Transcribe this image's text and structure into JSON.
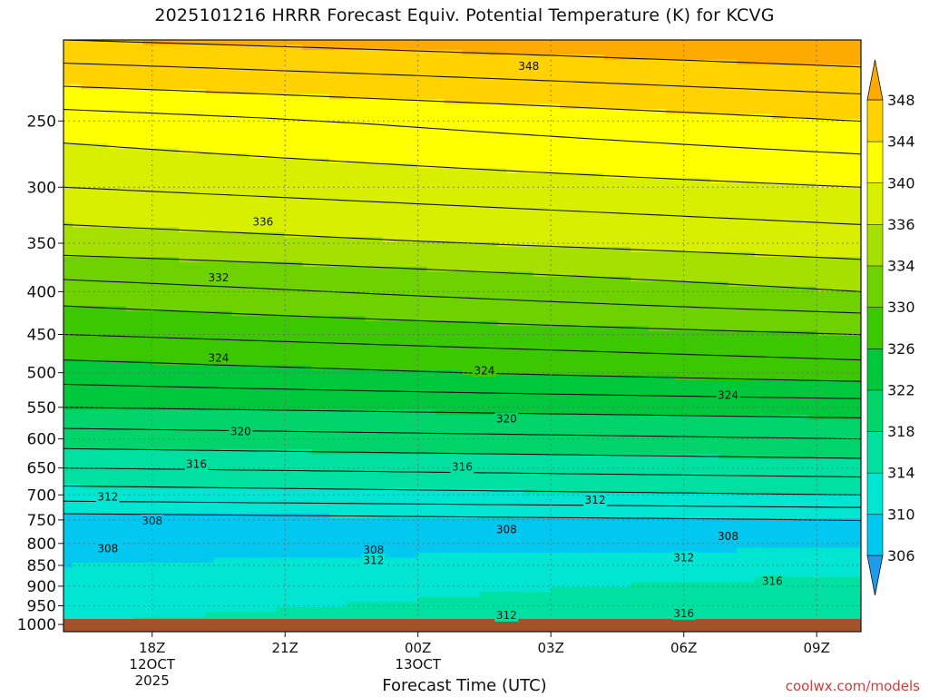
{
  "title": "2025101216 HRRR Forecast Equiv. Potential Temperature (K) for KCVG",
  "credit": "coolwx.com/models",
  "chart_data": {
    "type": "heatmap",
    "title": "2025101216 HRRR Forecast Equiv. Potential Temperature (K) for KCVG",
    "xlabel": "Forecast Time (UTC)",
    "ylabel": "",
    "x_ticks": [
      {
        "hour": 2,
        "label": "18Z",
        "sub": [
          "12OCT",
          "2025"
        ]
      },
      {
        "hour": 5,
        "label": "21Z",
        "sub": []
      },
      {
        "hour": 8,
        "label": "00Z",
        "sub": [
          "13OCT"
        ]
      },
      {
        "hour": 11,
        "label": "03Z",
        "sub": []
      },
      {
        "hour": 14,
        "label": "06Z",
        "sub": []
      },
      {
        "hour": 17,
        "label": "09Z",
        "sub": []
      }
    ],
    "y_ticks": [
      250,
      300,
      350,
      400,
      450,
      500,
      550,
      600,
      650,
      700,
      750,
      800,
      850,
      900,
      950,
      1000
    ],
    "ylim_hPa": [
      200,
      1020
    ],
    "y_scale": "log",
    "grid": "dotted",
    "colorbar": {
      "levels": [
        306,
        310,
        314,
        318,
        322,
        326,
        330,
        334,
        336,
        340,
        344,
        348
      ],
      "placement": "right",
      "colors": [
        "#1e9bea",
        "#00c8f0",
        "#00e6d2",
        "#00e0a0",
        "#00d46a",
        "#00c83c",
        "#3cc800",
        "#6ed200",
        "#a6e000",
        "#d8f000",
        "#ffff00",
        "#ffd200",
        "#ffaa00"
      ]
    },
    "profile_start": [
      {
        "p": 200,
        "theta": 348
      },
      {
        "p": 250,
        "theta": 341
      },
      {
        "p": 300,
        "theta": 338
      },
      {
        "p": 350,
        "theta": 335
      },
      {
        "p": 400,
        "theta": 331
      },
      {
        "p": 450,
        "theta": 328
      },
      {
        "p": 500,
        "theta": 325
      },
      {
        "p": 550,
        "theta": 322
      },
      {
        "p": 600,
        "theta": 319
      },
      {
        "p": 650,
        "theta": 316
      },
      {
        "p": 700,
        "theta": 313
      },
      {
        "p": 750,
        "theta": 309
      },
      {
        "p": 800,
        "theta": 308
      },
      {
        "p": 850,
        "theta": 310
      },
      {
        "p": 900,
        "theta": 312
      },
      {
        "p": 950,
        "theta": 313
      },
      {
        "p": 1000,
        "theta": 314
      }
    ],
    "profile_end": [
      {
        "p": 200,
        "theta": 350
      },
      {
        "p": 250,
        "theta": 344
      },
      {
        "p": 300,
        "theta": 340
      },
      {
        "p": 350,
        "theta": 337
      },
      {
        "p": 400,
        "theta": 334
      },
      {
        "p": 450,
        "theta": 330
      },
      {
        "p": 500,
        "theta": 327
      },
      {
        "p": 550,
        "theta": 323
      },
      {
        "p": 600,
        "theta": 320
      },
      {
        "p": 650,
        "theta": 317
      },
      {
        "p": 700,
        "theta": 314
      },
      {
        "p": 750,
        "theta": 310
      },
      {
        "p": 800,
        "theta": 309
      },
      {
        "p": 850,
        "theta": 313
      },
      {
        "p": 900,
        "theta": 315
      },
      {
        "p": 950,
        "theta": 316
      },
      {
        "p": 1000,
        "theta": 317
      }
    ],
    "contour_labels": [
      {
        "value": "348",
        "hour": 10.5,
        "p": 215
      },
      {
        "value": "336",
        "hour": 4.5,
        "p": 330
      },
      {
        "value": "332",
        "hour": 3.5,
        "p": 385
      },
      {
        "value": "324",
        "hour": 3.5,
        "p": 480
      },
      {
        "value": "324",
        "hour": 9.5,
        "p": 497
      },
      {
        "value": "324",
        "hour": 15.0,
        "p": 532
      },
      {
        "value": "320",
        "hour": 10.0,
        "p": 568
      },
      {
        "value": "320",
        "hour": 4.0,
        "p": 588
      },
      {
        "value": "316",
        "hour": 3.0,
        "p": 643
      },
      {
        "value": "316",
        "hour": 9.0,
        "p": 648
      },
      {
        "value": "312",
        "hour": 1.0,
        "p": 704
      },
      {
        "value": "312",
        "hour": 12.0,
        "p": 710
      },
      {
        "value": "308",
        "hour": 2.0,
        "p": 752
      },
      {
        "value": "308",
        "hour": 10.0,
        "p": 770
      },
      {
        "value": "308",
        "hour": 15.0,
        "p": 785
      },
      {
        "value": "308",
        "hour": 1.0,
        "p": 812
      },
      {
        "value": "308",
        "hour": 7.0,
        "p": 815
      },
      {
        "value": "312",
        "hour": 7.0,
        "p": 838
      },
      {
        "value": "312",
        "hour": 14.0,
        "p": 832
      },
      {
        "value": "316",
        "hour": 16.0,
        "p": 888
      },
      {
        "value": "312",
        "hour": 10.0,
        "p": 975
      },
      {
        "value": "316",
        "hour": 14.0,
        "p": 970
      }
    ],
    "surface_p": 985
  }
}
